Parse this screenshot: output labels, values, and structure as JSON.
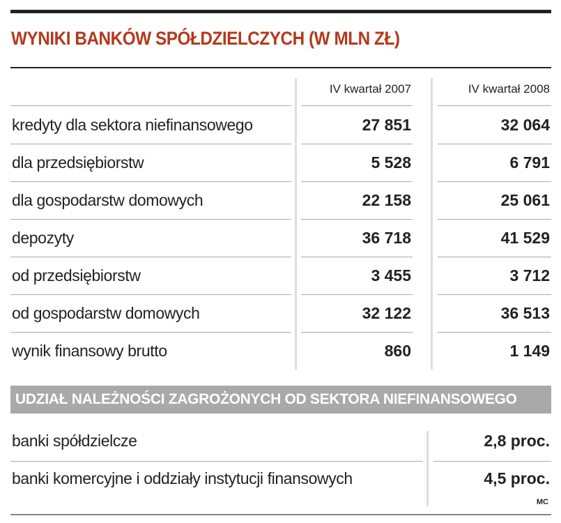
{
  "header": {
    "title": "WYNIKI BANKÓW SPÓŁDZIELCZYCH (W MLN ZŁ)"
  },
  "table": {
    "columns": [
      "IV kwartał 2007",
      "IV kwartał 2008"
    ],
    "rows": [
      [
        "kredyty dla sektora niefinansowego",
        "27 851",
        "32 064"
      ],
      [
        "dla przedsiębiorstw",
        "5 528",
        "6 791"
      ],
      [
        "dla gospodarstw domowych",
        "22 158",
        "25 061"
      ],
      [
        "depozyty",
        "36 718",
        "41 529"
      ],
      [
        "od przedsiębiorstw",
        "3 455",
        "3 712"
      ],
      [
        "od gospodarstw domowych",
        "32 122",
        "36 513"
      ],
      [
        "wynik finansowy brutto",
        "860",
        "1 149"
      ]
    ]
  },
  "section": {
    "title": "UDZIAŁ NALEŻNOŚCI ZAGROŻONYCH OD SEKTORA NIEFINANSOWEGO",
    "rows": [
      [
        "banki spółdzielcze",
        "2,8 proc."
      ],
      [
        "banki komercyjne i oddziały instytucji finansowych",
        "4,5 proc."
      ]
    ]
  },
  "source": "MC"
}
